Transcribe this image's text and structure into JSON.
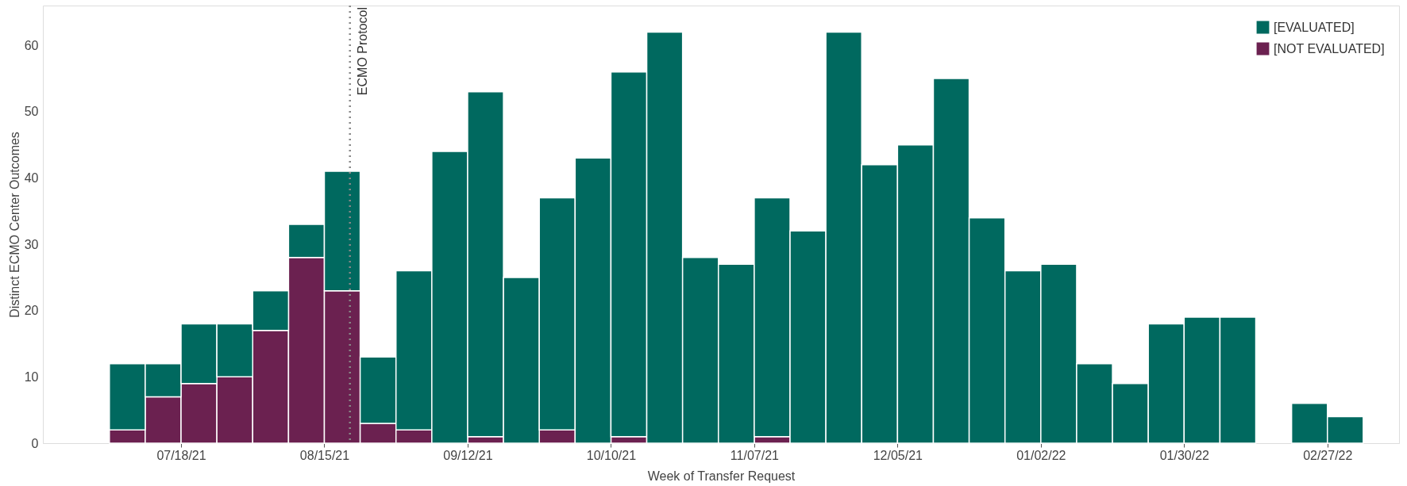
{
  "chart_data": {
    "type": "bar",
    "stacked": true,
    "xlabel": "Week of Transfer Request",
    "ylabel": "Distinct ECMO Center Outcomes",
    "x": [
      "2021-07-07T12:00",
      "2021-07-14T12:00",
      "2021-07-21T12:00",
      "2021-07-28T12:00",
      "2021-08-04T12:00",
      "2021-08-11T12:00",
      "2021-08-18T12:00",
      "2021-08-25T12:00",
      "2021-09-01T12:00",
      "2021-09-08T12:00",
      "2021-09-15T12:00",
      "2021-09-22T12:00",
      "2021-09-29T12:00",
      "2021-10-06T12:00",
      "2021-10-13T12:00",
      "2021-10-20T12:00",
      "2021-10-27T12:00",
      "2021-11-03T12:00",
      "2021-11-10T12:00",
      "2021-11-17T12:00",
      "2021-11-24T12:00",
      "2021-12-01T12:00",
      "2021-12-08T12:00",
      "2021-12-15T12:00",
      "2021-12-22T12:00",
      "2021-12-29T12:00",
      "2022-01-05T12:00",
      "2022-01-12T12:00",
      "2022-01-19T12:00",
      "2022-01-26T12:00",
      "2022-02-02T12:00",
      "2022-02-09T12:00",
      "2022-02-16T12:00",
      "2022-02-23T12:00",
      "2022-03-02T12:00"
    ],
    "series": [
      {
        "name": "[NOT EVALUATED]",
        "color": "#6b2150",
        "values": [
          2,
          7,
          9,
          10,
          17,
          28,
          23,
          3,
          2,
          null,
          1,
          null,
          2,
          null,
          1,
          null,
          null,
          null,
          1,
          null,
          null,
          null,
          null,
          null,
          null,
          null,
          null,
          null,
          null,
          null,
          null,
          null,
          null,
          null,
          null
        ]
      },
      {
        "name": "[EVALUATED]",
        "color": "#00695f",
        "values": [
          10,
          5,
          9,
          8,
          6,
          5,
          18,
          10,
          24,
          44,
          52,
          25,
          35,
          43,
          55,
          62,
          28,
          27,
          36,
          32,
          62,
          42,
          45,
          55,
          34,
          26,
          27,
          12,
          9,
          18,
          19,
          19,
          null,
          6,
          4
        ]
      }
    ],
    "xlim": [
      "2021-06-21",
      "2022-03-13"
    ],
    "xticks": [
      {
        "value": "2021-07-18",
        "label": "07/18/21"
      },
      {
        "value": "2021-08-15",
        "label": "08/15/21"
      },
      {
        "value": "2021-09-12",
        "label": "09/12/21"
      },
      {
        "value": "2021-10-10",
        "label": "10/10/21"
      },
      {
        "value": "2021-11-07",
        "label": "11/07/21"
      },
      {
        "value": "2021-12-05",
        "label": "12/05/21"
      },
      {
        "value": "2022-01-02",
        "label": "01/02/22"
      },
      {
        "value": "2022-01-30",
        "label": "01/30/22"
      },
      {
        "value": "2022-02-27",
        "label": "02/27/22"
      }
    ],
    "ylim": [
      0,
      66
    ],
    "yticks": [
      0,
      10,
      20,
      30,
      40,
      50,
      60
    ],
    "ref_lines": [
      {
        "axis": "x",
        "value": "2021-08-20",
        "label": "ECMO Protocol",
        "color": "#888888",
        "line_style": "dotted"
      }
    ],
    "grid": false,
    "legend": "top right"
  }
}
